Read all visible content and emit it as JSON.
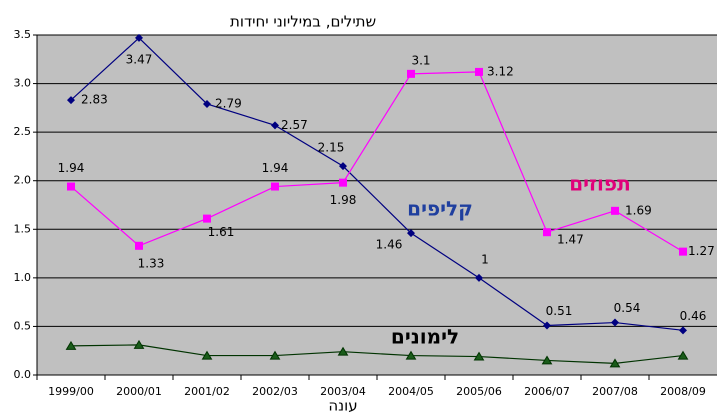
{
  "chart_data": {
    "type": "line",
    "y_label": "שתילים, במיליוני יחידות",
    "x_label": "עונה",
    "categories": [
      "1999/00",
      "2000/01",
      "2001/02",
      "2002/03",
      "2003/04",
      "2004/05",
      "2005/06",
      "2006/07",
      "2007/08",
      "2008/09"
    ],
    "series": [
      {
        "name": "קליפים",
        "color": "#000080",
        "marker": "diamond",
        "values": [
          2.83,
          3.47,
          2.79,
          2.57,
          2.15,
          1.46,
          1,
          0.51,
          0.54,
          0.46
        ]
      },
      {
        "name": "תפוזים",
        "color": "#ff00ff",
        "marker": "square",
        "values": [
          1.94,
          1.33,
          1.61,
          1.94,
          1.98,
          3.1,
          3.12,
          1.47,
          1.69,
          1.27
        ]
      },
      {
        "name": "לימונים",
        "color": "#003300",
        "marker": "triangle",
        "values": [
          0.3,
          0.31,
          0.2,
          0.2,
          0.24,
          0.2,
          0.19,
          0.15,
          0.12,
          0.2
        ]
      }
    ],
    "ylim": [
      0,
      3.5
    ],
    "yticks": [
      {
        "value": 0,
        "label": "0.0"
      },
      0.5,
      {
        "value": 1,
        "label": "1.0"
      },
      1.5,
      {
        "value": 2,
        "label": "2.0"
      },
      2.5,
      {
        "value": 3,
        "label": "3.0"
      },
      3.5
    ],
    "grid": true
  }
}
